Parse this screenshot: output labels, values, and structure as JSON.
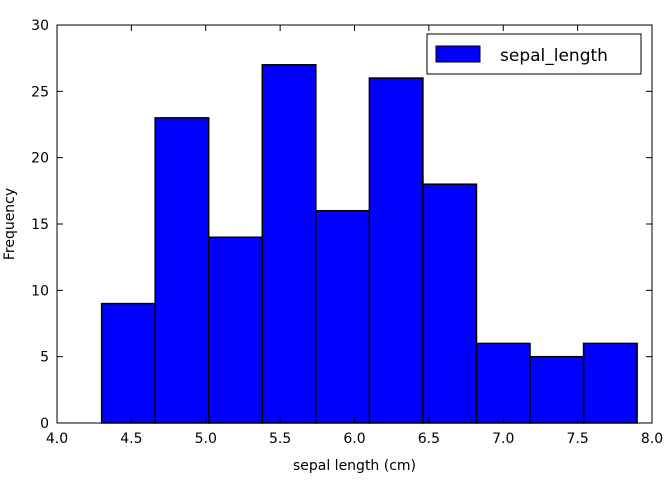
{
  "chart_data": {
    "type": "bar",
    "subtype": "histogram",
    "bin_edges": [
      4.3,
      4.66,
      5.02,
      5.38,
      5.74,
      6.1,
      6.46,
      6.82,
      7.18,
      7.54,
      7.9
    ],
    "values": [
      9,
      23,
      14,
      27,
      16,
      26,
      18,
      6,
      5,
      6
    ],
    "series": [
      {
        "name": "sepal_length",
        "values": [
          9,
          23,
          14,
          27,
          16,
          26,
          18,
          6,
          5,
          6
        ]
      }
    ],
    "title": "",
    "xlabel": "sepal length (cm)",
    "ylabel": "Frequency",
    "xlim": [
      4.0,
      8.0
    ],
    "ylim": [
      0,
      30
    ],
    "x_ticks": [
      "4.0",
      "4.5",
      "5.0",
      "5.5",
      "6.0",
      "6.5",
      "7.0",
      "7.5",
      "8.0"
    ],
    "y_ticks": [
      "0",
      "5",
      "10",
      "15",
      "20",
      "25",
      "30"
    ],
    "grid": false,
    "legend_position": "top-right",
    "bar_color": "#0000ff",
    "edge_color": "#000000"
  }
}
